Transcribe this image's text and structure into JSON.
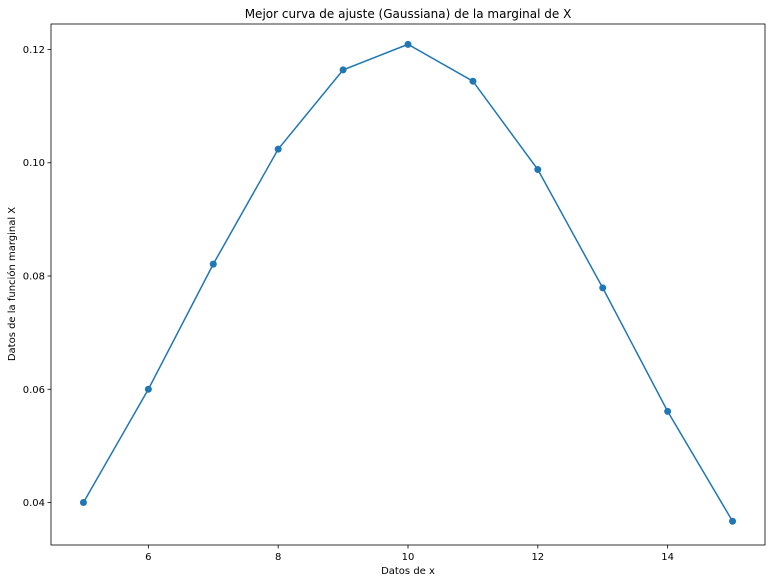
{
  "chart_data": {
    "type": "line",
    "title": "Mejor curva de ajuste (Gaussiana) de la marginal de X",
    "xlabel": "Datos de x",
    "ylabel": "Datos de la función marginal X",
    "x": [
      5,
      6,
      7,
      8,
      9,
      10,
      11,
      12,
      13,
      14,
      15
    ],
    "series": [
      {
        "values": [
          0.04,
          0.06,
          0.0821,
          0.1024,
          0.1164,
          0.1209,
          0.1144,
          0.0988,
          0.0779,
          0.0561,
          0.0367
        ],
        "color": "#1f77b4",
        "marker": "circle"
      }
    ],
    "xlim": [
      4.5,
      15.5
    ],
    "ylim": [
      0.0325,
      0.1245
    ],
    "xticks": [
      6,
      8,
      10,
      12,
      14
    ],
    "xtick_labels": [
      "6",
      "8",
      "10",
      "12",
      "14"
    ],
    "yticks": [
      0.04,
      0.06,
      0.08,
      0.1,
      0.12
    ],
    "ytick_labels": [
      "0.04",
      "0.06",
      "0.08",
      "0.10",
      "0.12"
    ],
    "grid": false,
    "legend": "none"
  }
}
